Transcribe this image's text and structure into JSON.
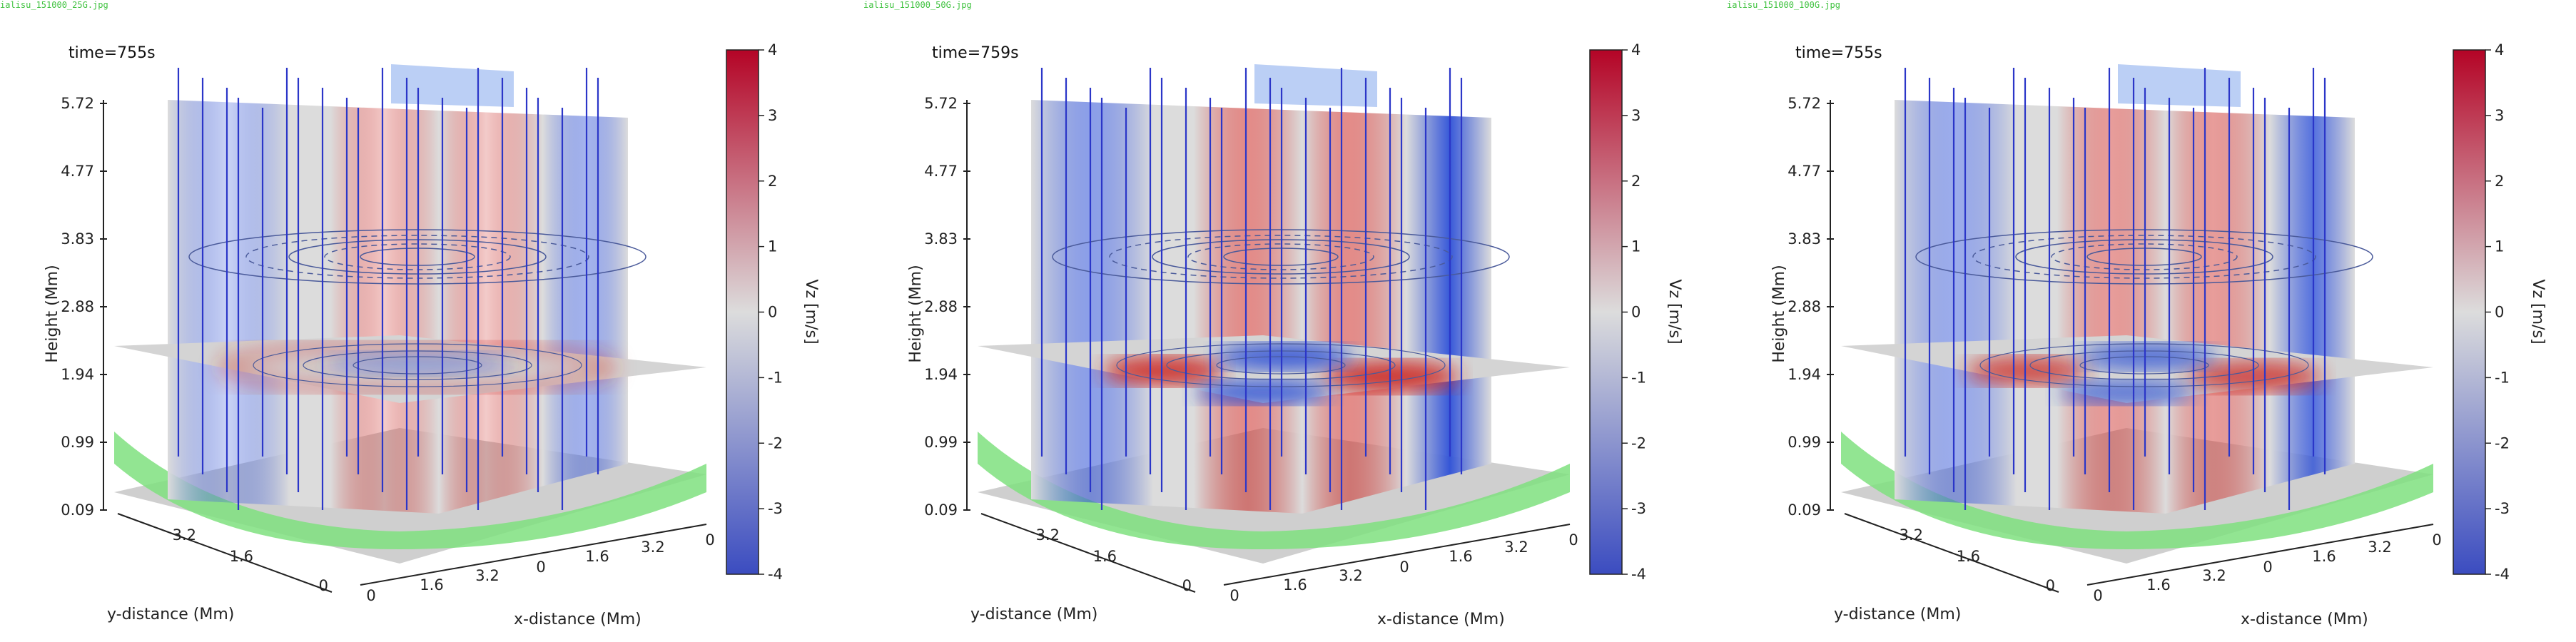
{
  "panels": [
    {
      "filename": "ialisu_151000_25G.jpg",
      "time": "time=755s",
      "intensity": 0.45,
      "pattern": "ring"
    },
    {
      "filename": "ialisu_151000_50G.jpg",
      "time": "time=759s",
      "intensity": 1.0,
      "pattern": "quad"
    },
    {
      "filename": "ialisu_151000_100G.jpg",
      "time": "time=755s",
      "intensity": 0.85,
      "pattern": "quad"
    }
  ],
  "chart_data": {
    "type": "heatmap",
    "z_ticks": [
      "5.72",
      "4.77",
      "3.83",
      "2.88",
      "1.94",
      "0.99",
      "0.09"
    ],
    "y_ticks": [
      "3.2",
      "1.6",
      "0"
    ],
    "x_ticks": [
      "0",
      "1.6",
      "3.2",
      "0",
      "1.6",
      "3.2",
      "0"
    ],
    "zlabel": "Height (Mm)",
    "ylabel": "y-distance (Mm)",
    "xlabel": "x-distance (Mm)",
    "colorbar": {
      "label": "Vz [m/s]",
      "range": [
        -4,
        4
      ],
      "ticks": [
        "4",
        "3",
        "2",
        "1",
        "0",
        "-1",
        "-2",
        "-3",
        "-4"
      ],
      "colors": [
        "#3b4cc0",
        "#dcdcdc",
        "#b40426"
      ]
    }
  }
}
